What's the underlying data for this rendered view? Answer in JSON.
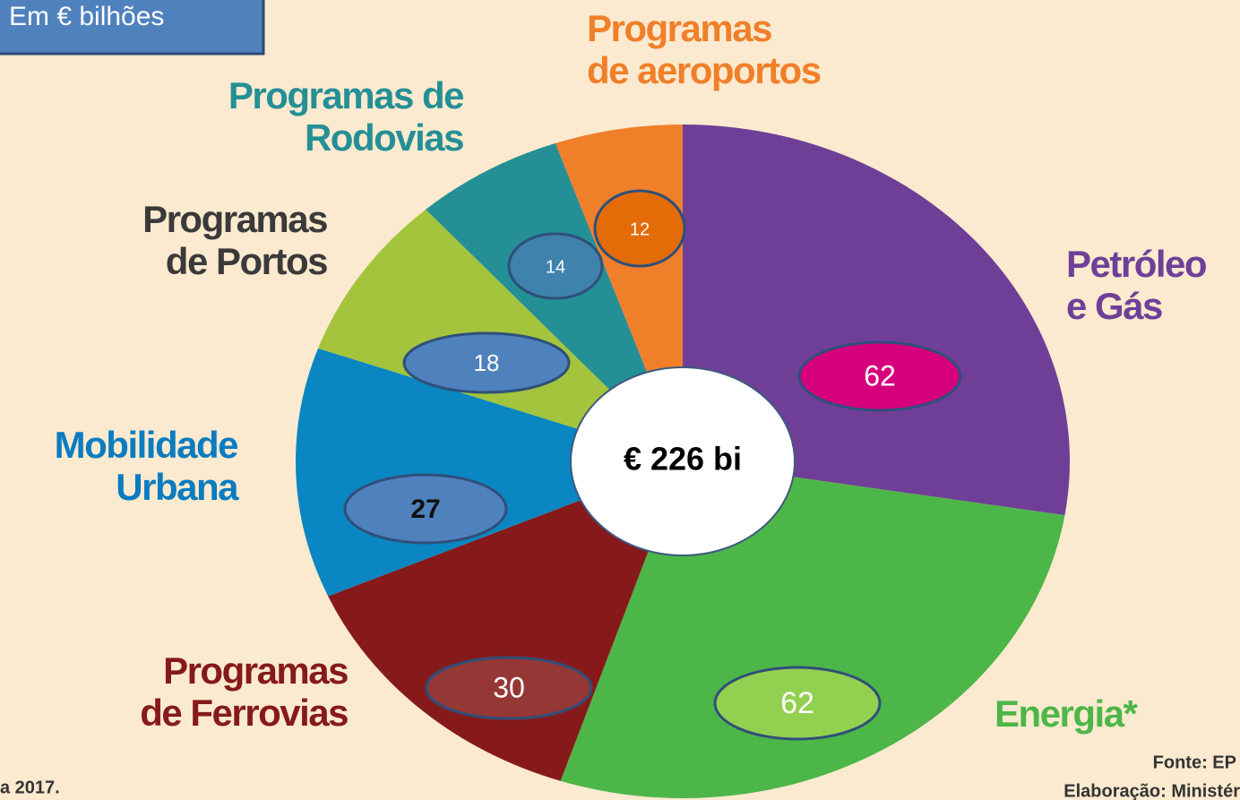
{
  "chart_data": {
    "type": "pie",
    "unit_note": "Em € bilhões",
    "center_label": "€ 226 bi",
    "categories": [
      [
        "Petróleo",
        "e Gás"
      ],
      [
        "Energia*"
      ],
      [
        "Programas",
        "de Ferrovias"
      ],
      [
        "Mobilidade",
        "Urbana"
      ],
      [
        "Programas",
        "de Portos"
      ],
      [
        "Programas de",
        "Rodovias"
      ],
      [
        "Programas",
        "de aeroportos"
      ]
    ],
    "values": [
      62,
      62,
      30,
      27,
      18,
      14,
      12
    ],
    "colors": [
      "#6f3f98",
      "#4db648",
      "#861a1b",
      "#0a86c2",
      "#a3c43c",
      "#258f96",
      "#f07f2a"
    ],
    "category_colors": [
      "#6f3f98",
      "#4db648",
      "#861a1b",
      "#0a7cc1",
      "#3a3a3a",
      "#258f96",
      "#f07f2a"
    ],
    "value_label_colors": [
      "#d6007e",
      "#92d050",
      "#953735",
      "#4f81bd",
      "#4f81bd",
      "#3f82ac",
      "#e36c09"
    ],
    "footnotes": [
      "Fonte: EP",
      "Elaboração: Ministér",
      "a 2017."
    ]
  }
}
